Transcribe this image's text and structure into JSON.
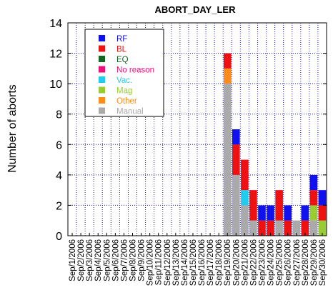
{
  "chart_data": {
    "type": "bar",
    "stacked": true,
    "title": "ABORT_DAY_LER",
    "xlabel": "",
    "ylabel": "Number of aborts",
    "ylim": [
      0,
      14
    ],
    "yticks": [
      0,
      2,
      4,
      6,
      8,
      10,
      12,
      14
    ],
    "grid": true,
    "legend_position": "top-left",
    "categories": [
      "Sep/1/2006",
      "Sep/2/2006",
      "Sep/3/2006",
      "Sep/4/2006",
      "Sep/5/2006",
      "Sep/6/2006",
      "Sep/7/2006",
      "Sep/8/2006",
      "Sep/9/2006",
      "Sep/10/2006",
      "Sep/11/2006",
      "Sep/12/2006",
      "Sep/13/2006",
      "Sep/14/2006",
      "Sep/15/2006",
      "Sep/16/2006",
      "Sep/17/2006",
      "Sep/18/2006",
      "Sep/19/2006",
      "Sep/20/2006",
      "Sep/21/2006",
      "Sep/22/2006",
      "Sep/23/2006",
      "Sep/24/2006",
      "Sep/25/2006",
      "Sep/26/2006",
      "Sep/27/2006",
      "Sep/28/2006",
      "Sep/29/2006",
      "Sep/30/2006"
    ],
    "series": [
      {
        "name": "Manual",
        "color": "#aaaaaa",
        "values": [
          0,
          0,
          0,
          0,
          0,
          0,
          0,
          0,
          0,
          0,
          0,
          0,
          0,
          0,
          0,
          0,
          0,
          0,
          10,
          4,
          2,
          1,
          0,
          0,
          1,
          0,
          1,
          0,
          1,
          0
        ]
      },
      {
        "name": "Other",
        "color": "#ff8c1a",
        "values": [
          0,
          0,
          0,
          0,
          0,
          0,
          0,
          0,
          0,
          0,
          0,
          0,
          0,
          0,
          0,
          0,
          0,
          0,
          1,
          0,
          0,
          0,
          0,
          0,
          0,
          0,
          0,
          0,
          0,
          0
        ]
      },
      {
        "name": "Mag",
        "color": "#99cc33",
        "values": [
          0,
          0,
          0,
          0,
          0,
          0,
          0,
          0,
          0,
          0,
          0,
          0,
          0,
          0,
          0,
          0,
          0,
          0,
          0,
          0,
          0,
          0,
          0,
          0,
          0,
          0,
          0,
          0,
          1,
          1
        ]
      },
      {
        "name": "Vac.",
        "color": "#22ccee",
        "values": [
          0,
          0,
          0,
          0,
          0,
          0,
          0,
          0,
          0,
          0,
          0,
          0,
          0,
          0,
          0,
          0,
          0,
          0,
          0,
          0,
          1,
          0,
          0,
          0,
          0,
          0,
          0,
          0,
          0,
          0
        ]
      },
      {
        "name": "No reason",
        "color": "#ee1177",
        "values": [
          0,
          0,
          0,
          0,
          0,
          0,
          0,
          0,
          0,
          0,
          0,
          0,
          0,
          0,
          0,
          0,
          0,
          0,
          0,
          0,
          0,
          0,
          0,
          0,
          0,
          0,
          0,
          0,
          0,
          0
        ]
      },
      {
        "name": "EQ",
        "color": "#116622",
        "values": [
          0,
          0,
          0,
          0,
          0,
          0,
          0,
          0,
          0,
          0,
          0,
          0,
          0,
          0,
          0,
          0,
          0,
          0,
          0,
          0,
          0,
          0,
          0,
          0,
          0,
          0,
          0,
          0,
          0,
          0
        ]
      },
      {
        "name": "BL",
        "color": "#ee1111",
        "values": [
          0,
          0,
          0,
          0,
          0,
          0,
          0,
          0,
          0,
          0,
          0,
          0,
          0,
          0,
          0,
          0,
          0,
          0,
          1,
          2,
          2,
          2,
          1,
          1,
          2,
          1,
          0,
          1,
          1,
          1
        ]
      },
      {
        "name": "RF",
        "color": "#1111ee",
        "values": [
          0,
          0,
          0,
          0,
          0,
          0,
          0,
          0,
          0,
          0,
          0,
          0,
          0,
          0,
          0,
          0,
          0,
          0,
          0,
          1,
          0,
          0,
          1,
          1,
          0,
          1,
          0,
          1,
          1,
          1
        ]
      }
    ],
    "legend_order": [
      "RF",
      "BL",
      "EQ",
      "No reason",
      "Vac.",
      "Mag",
      "Other",
      "Manual"
    ],
    "legend_text_colors": {
      "RF": "#1111ee",
      "BL": "#ee1111",
      "EQ": "#116622",
      "No reason": "#ee1177",
      "Vac.": "#22ccee",
      "Mag": "#99cc33",
      "Other": "#ff8c1a",
      "Manual": "#aaaaaa"
    }
  }
}
